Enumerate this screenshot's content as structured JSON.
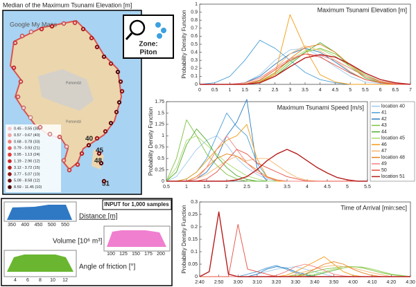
{
  "map": {
    "title": "Median of the Maximum Tsunami Elevation [m]",
    "brand": "Google My Maps",
    "zone_label": "Zone:",
    "zone_name": "Piton",
    "places": [
      "Pamandzi",
      "Pamandzi"
    ],
    "locations": [
      "40",
      "45",
      "48",
      "51"
    ],
    "legend": [
      "0.45 - 0.55 (38)",
      "0.57 - 0.67 (40)",
      "0.68 - 0.78 (33)",
      "0.79 - 0.93 (21)",
      "0.95 - 1.13 (24)",
      "1.19 - 2.96 (12)",
      "3.12 - 3.72 (15)",
      "3.77 - 5.07 (10)",
      "5.09 - 8.58 (12)",
      "8.59 - 11.45 (10)"
    ]
  },
  "inputs": {
    "title": "INPUT for 1,000 samples",
    "distance": {
      "label": "Distance [m]",
      "ticks": [
        350,
        400,
        450,
        500,
        550
      ]
    },
    "volume": {
      "label": "Volume [10⁶ m³]",
      "ticks": [
        100,
        125,
        150,
        175,
        200
      ]
    },
    "angle": {
      "label": "Angle of friction [°]",
      "ticks": [
        4,
        6,
        8,
        10,
        12
      ]
    }
  },
  "chart_data": [
    {
      "type": "line",
      "title": "Maximum Tsunami Elevation [m]",
      "y_label": "Probability Density Function",
      "x": [
        0,
        0.5,
        1,
        1.5,
        2,
        2.5,
        3,
        3.5,
        4,
        4.5,
        5,
        5.5,
        6,
        6.5,
        7
      ],
      "xlim": [
        0,
        7
      ],
      "xticks": [
        0,
        0.5,
        1,
        1.5,
        2,
        2.5,
        3,
        3.5,
        4,
        4.5,
        5,
        5.5,
        6,
        6.5,
        7
      ],
      "ylim": [
        0,
        1
      ],
      "yticks": [
        0,
        0.1,
        0.2,
        0.3,
        0.4,
        0.5,
        0.6,
        0.7,
        0.8,
        0.9,
        1
      ],
      "series": [
        {
          "color": "#9fc9ea",
          "values": [
            0,
            0,
            0,
            0.02,
            0.12,
            0.3,
            0.43,
            0.45,
            0.35,
            0.22,
            0.1,
            0.03,
            0.01,
            0,
            0
          ]
        },
        {
          "color": "#4a9fd8",
          "values": [
            0,
            0.02,
            0.1,
            0.3,
            0.55,
            0.45,
            0.3,
            0.15,
            0.06,
            0.02,
            0,
            0,
            0,
            0,
            0
          ]
        },
        {
          "color": "#2b7bc0",
          "values": [
            0,
            0,
            0,
            0.02,
            0.1,
            0.25,
            0.38,
            0.45,
            0.4,
            0.28,
            0.15,
            0.06,
            0.02,
            0,
            0
          ]
        },
        {
          "color": "#7cc242",
          "values": [
            0,
            0,
            0,
            0,
            0.03,
            0.12,
            0.28,
            0.4,
            0.45,
            0.38,
            0.25,
            0.12,
            0.04,
            0.01,
            0
          ]
        },
        {
          "color": "#4dab2d",
          "values": [
            0,
            0,
            0,
            0,
            0.02,
            0.1,
            0.25,
            0.4,
            0.52,
            0.4,
            0.22,
            0.08,
            0.02,
            0,
            0
          ]
        },
        {
          "color": "#a6d96a",
          "values": [
            0,
            0,
            0,
            0,
            0.04,
            0.15,
            0.3,
            0.42,
            0.44,
            0.35,
            0.22,
            0.1,
            0.03,
            0,
            0
          ]
        },
        {
          "color": "#f39c12",
          "values": [
            0,
            0,
            0,
            0,
            0.02,
            0.12,
            0.87,
            0.45,
            0.12,
            0.03,
            0,
            0,
            0,
            0,
            0
          ]
        },
        {
          "color": "#f5b36b",
          "values": [
            0,
            0,
            0,
            0.01,
            0.06,
            0.2,
            0.38,
            0.48,
            0.42,
            0.3,
            0.16,
            0.06,
            0.02,
            0,
            0
          ]
        },
        {
          "color": "#e8801a",
          "values": [
            0,
            0,
            0,
            0,
            0.03,
            0.14,
            0.32,
            0.46,
            0.5,
            0.4,
            0.24,
            0.1,
            0.03,
            0,
            0
          ]
        },
        {
          "color": "#f08080",
          "values": [
            0,
            0,
            0,
            0.02,
            0.08,
            0.2,
            0.32,
            0.38,
            0.36,
            0.3,
            0.2,
            0.1,
            0.04,
            0.01,
            0
          ]
        },
        {
          "color": "#e74c3c",
          "values": [
            0,
            0,
            0,
            0,
            0.05,
            0.18,
            0.3,
            0.38,
            0.34,
            0.24,
            0.14,
            0.06,
            0.02,
            0,
            0
          ]
        },
        {
          "color": "#b71c1c",
          "values": [
            0,
            0,
            0,
            0,
            0.02,
            0.1,
            0.22,
            0.33,
            0.37,
            0.34,
            0.25,
            0.14,
            0.06,
            0.02,
            0
          ]
        }
      ]
    },
    {
      "type": "line",
      "title": "Maximum Tsunami Speed [m/s]",
      "y_label": "Probability Density Function",
      "legend": "right",
      "x": [
        0.5,
        0.75,
        1,
        1.25,
        1.5,
        1.75,
        2,
        2.25,
        2.5,
        2.75,
        3,
        3.25,
        3.5,
        3.75,
        4,
        4.25,
        4.5,
        4.75,
        5,
        5.25,
        5.5
      ],
      "xlim": [
        0.5,
        5.5
      ],
      "xticks": [
        0.5,
        1,
        1.5,
        2,
        2.5,
        3,
        3.5,
        4,
        4.5,
        5,
        5.5
      ],
      "ylim": [
        0,
        1.75
      ],
      "yticks": [
        0,
        0.25,
        0.5,
        0.75,
        1,
        1.25,
        1.5,
        1.75
      ],
      "series": [
        {
          "name": "location 40",
          "color": "#9fc9ea",
          "values": [
            0,
            0.1,
            0.4,
            0.7,
            0.9,
            1.0,
            0.8,
            0.5,
            0.3,
            0.15,
            0.05,
            0,
            0,
            0,
            0,
            0,
            0,
            0,
            0,
            0,
            0
          ]
        },
        {
          "name": "41",
          "color": "#4a9fd8",
          "values": [
            0,
            0,
            0.05,
            0.2,
            0.5,
            1.0,
            1.5,
            1.2,
            1.0,
            0.4,
            0.1,
            0,
            0,
            0,
            0,
            0,
            0,
            0,
            0,
            0,
            0
          ]
        },
        {
          "name": "42",
          "color": "#2b7bc0",
          "values": [
            0,
            0,
            0,
            0.05,
            0.2,
            0.5,
            1.0,
            1.3,
            1.8,
            0.3,
            0,
            0,
            0,
            0,
            0,
            0,
            0,
            0,
            0,
            0,
            0
          ]
        },
        {
          "name": "43",
          "color": "#7cc242",
          "values": [
            0,
            0.5,
            1.35,
            1.0,
            0.6,
            0.35,
            0.15,
            0.05,
            0,
            0,
            0,
            0,
            0,
            0,
            0,
            0,
            0,
            0,
            0,
            0,
            0
          ]
        },
        {
          "name": "44",
          "color": "#4dab2d",
          "values": [
            0,
            0.2,
            0.8,
            1.15,
            0.9,
            0.55,
            0.3,
            0.12,
            0.04,
            0,
            0,
            0,
            0,
            0,
            0,
            0,
            0,
            0,
            0,
            0,
            0
          ]
        },
        {
          "name": "location 45",
          "color": "#a6d96a",
          "values": [
            0,
            0.3,
            0.9,
            1.0,
            0.8,
            0.6,
            0.4,
            0.25,
            0.12,
            0.05,
            0,
            0,
            0,
            0,
            0,
            0,
            0,
            0,
            0,
            0,
            0
          ]
        },
        {
          "name": "46",
          "color": "#f39c12",
          "values": [
            0,
            0,
            0.05,
            0.2,
            0.45,
            0.7,
            0.9,
            1.0,
            1.25,
            0.5,
            0.1,
            0,
            0,
            0,
            0,
            0,
            0,
            0,
            0,
            0,
            0
          ]
        },
        {
          "name": "47",
          "color": "#f5b36b",
          "values": [
            0,
            0,
            0,
            0.05,
            0.15,
            0.3,
            0.45,
            0.55,
            0.45,
            0.5,
            0.5,
            0.35,
            0.2,
            0.08,
            0.02,
            0,
            0,
            0,
            0,
            0,
            0
          ]
        },
        {
          "name": "location 48",
          "color": "#e8801a",
          "values": [
            0,
            0,
            0,
            0.1,
            0.3,
            0.5,
            0.6,
            0.55,
            0.4,
            0.25,
            0.1,
            0.03,
            0,
            0,
            0,
            0,
            0,
            0,
            0,
            0,
            0
          ]
        },
        {
          "name": "49",
          "color": "#f08080",
          "values": [
            0,
            0,
            0,
            0.05,
            0.3,
            0.7,
            1.0,
            0.7,
            0.4,
            0.2,
            0.08,
            0.02,
            0,
            0,
            0,
            0,
            0,
            0,
            0,
            0,
            0
          ]
        },
        {
          "name": "50",
          "color": "#e74c3c",
          "values": [
            0,
            0,
            0,
            0,
            0.05,
            0.2,
            0.45,
            0.7,
            0.6,
            0.4,
            0.3,
            0.2,
            0.1,
            0.05,
            0,
            0,
            0,
            0,
            0,
            0,
            0
          ]
        },
        {
          "name": "location 51",
          "color": "#b71c1c",
          "values": [
            0,
            0,
            0,
            0,
            0,
            0,
            0,
            0.03,
            0.1,
            0.25,
            0.45,
            0.6,
            0.7,
            0.6,
            0.45,
            0.3,
            0.18,
            0.08,
            0.03,
            0,
            0
          ]
        }
      ]
    },
    {
      "type": "line",
      "title": "Time of Arrival [min:sec]",
      "y_label": "Probability Density Function",
      "x": [
        160,
        165,
        170,
        175,
        180,
        185,
        190,
        195,
        200,
        205,
        210,
        215,
        220,
        225,
        230,
        235,
        240,
        245,
        250,
        255,
        260,
        265,
        270
      ],
      "xlim": [
        160,
        270
      ],
      "xticks": [
        {
          "value": 160,
          "label": "2:40"
        },
        {
          "value": 170,
          "label": "2:50"
        },
        {
          "value": 180,
          "label": "3:00"
        },
        {
          "value": 190,
          "label": "3:10"
        },
        {
          "value": 200,
          "label": "3:20"
        },
        {
          "value": 210,
          "label": "3:30"
        },
        {
          "value": 220,
          "label": "3:40"
        },
        {
          "value": 230,
          "label": "3:50"
        },
        {
          "value": 240,
          "label": "4:00"
        },
        {
          "value": 250,
          "label": "4:10"
        },
        {
          "value": 260,
          "label": "4:20"
        },
        {
          "value": 270,
          "label": "4:30"
        }
      ],
      "ylim": [
        0,
        0.3
      ],
      "yticks": [
        0,
        0.05,
        0.1,
        0.15,
        0.2,
        0.25,
        0.3
      ],
      "series": [
        {
          "color": "#9fc9ea",
          "values": [
            0,
            0,
            0,
            0,
            0,
            0,
            0.01,
            0.02,
            0.03,
            0.035,
            0.04,
            0.03,
            0.02,
            0.01,
            0,
            0,
            0,
            0,
            0,
            0,
            0,
            0,
            0
          ]
        },
        {
          "color": "#4a9fd8",
          "values": [
            0,
            0,
            0,
            0,
            0,
            0.01,
            0.02,
            0.035,
            0.045,
            0.03,
            0.015,
            0.005,
            0,
            0,
            0,
            0,
            0,
            0,
            0,
            0,
            0,
            0,
            0
          ]
        },
        {
          "color": "#2b7bc0",
          "values": [
            0,
            0,
            0,
            0,
            0,
            0,
            0.01,
            0.03,
            0.04,
            0.035,
            0.02,
            0.01,
            0,
            0,
            0,
            0,
            0,
            0,
            0,
            0,
            0,
            0,
            0
          ]
        },
        {
          "color": "#7cc242",
          "values": [
            0,
            0,
            0,
            0,
            0,
            0,
            0,
            0,
            0,
            0,
            0.005,
            0.01,
            0.02,
            0.03,
            0.035,
            0.04,
            0.04,
            0.035,
            0.025,
            0.015,
            0.008,
            0.003,
            0
          ]
        },
        {
          "color": "#4dab2d",
          "values": [
            0,
            0,
            0,
            0,
            0,
            0,
            0,
            0,
            0,
            0,
            0,
            0,
            0.005,
            0.015,
            0.025,
            0.035,
            0.04,
            0.038,
            0.03,
            0.02,
            0.01,
            0.005,
            0
          ]
        },
        {
          "color": "#a6d96a",
          "values": [
            0,
            0,
            0,
            0,
            0,
            0,
            0,
            0,
            0,
            0,
            0,
            0.005,
            0.01,
            0.02,
            0.03,
            0.035,
            0.04,
            0.038,
            0.03,
            0.02,
            0.01,
            0.004,
            0
          ]
        },
        {
          "color": "#f39c12",
          "values": [
            0,
            0,
            0,
            0,
            0,
            0,
            0,
            0,
            0,
            0.005,
            0.02,
            0.04,
            0.06,
            0.08,
            0.05,
            0.02,
            0.005,
            0,
            0,
            0,
            0,
            0,
            0
          ]
        },
        {
          "color": "#f5b36b",
          "values": [
            0,
            0,
            0,
            0,
            0,
            0,
            0,
            0,
            0,
            0,
            0.01,
            0.02,
            0.03,
            0.04,
            0.045,
            0.04,
            0.035,
            0.025,
            0.015,
            0.008,
            0,
            0,
            0
          ]
        },
        {
          "color": "#e8801a",
          "values": [
            0,
            0,
            0,
            0,
            0,
            0,
            0,
            0,
            0,
            0,
            0,
            0.01,
            0.03,
            0.05,
            0.06,
            0.05,
            0.03,
            0.015,
            0.005,
            0,
            0,
            0,
            0
          ]
        },
        {
          "color": "#f08080",
          "values": [
            0,
            0,
            0,
            0,
            0,
            0,
            0,
            0,
            0.005,
            0.02,
            0.04,
            0.05,
            0.04,
            0.025,
            0.01,
            0.003,
            0,
            0,
            0,
            0,
            0,
            0,
            0
          ]
        },
        {
          "color": "#e74c3c",
          "values": [
            0,
            0,
            0,
            0,
            0.21,
            0.03,
            0.02,
            0.01,
            0,
            0,
            0,
            0,
            0,
            0,
            0,
            0,
            0,
            0,
            0,
            0,
            0,
            0,
            0
          ]
        },
        {
          "color": "#b71c1c",
          "values": [
            0,
            0.02,
            0.26,
            0.01,
            0,
            0,
            0,
            0,
            0,
            0,
            0,
            0,
            0,
            0,
            0,
            0,
            0,
            0,
            0,
            0,
            0,
            0,
            0
          ]
        }
      ]
    }
  ]
}
